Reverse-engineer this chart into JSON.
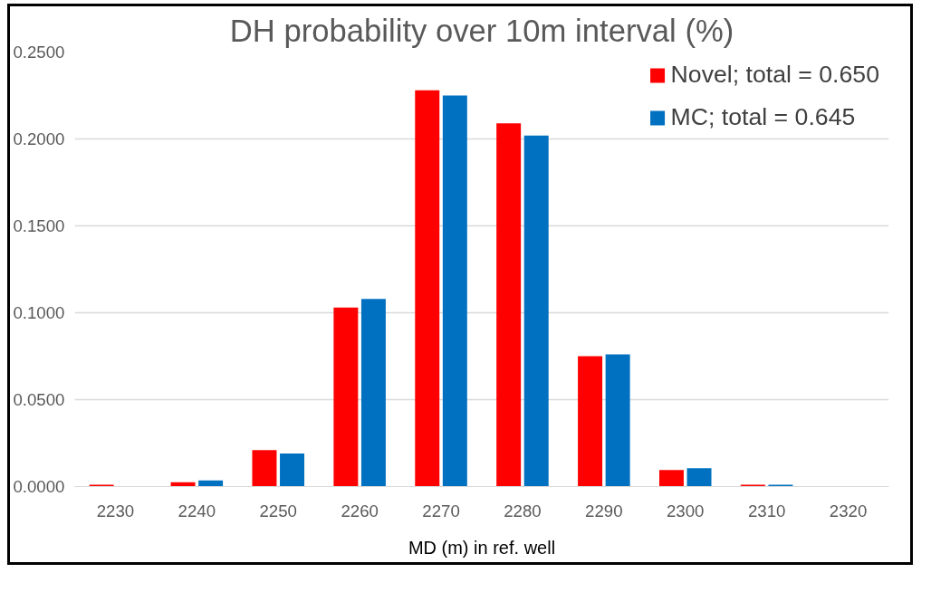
{
  "chart_data": {
    "type": "bar",
    "title": "DH probability over 10m interval (%)",
    "xlabel": "MD (m) in ref. well",
    "categories": [
      "2230",
      "2240",
      "2250",
      "2260",
      "2270",
      "2280",
      "2290",
      "2300",
      "2310",
      "2320"
    ],
    "series": [
      {
        "name": "Novel; total = 0.650",
        "color": "#ff0000",
        "values": [
          0.001,
          0.0025,
          0.021,
          0.103,
          0.228,
          0.209,
          0.075,
          0.0095,
          0.001,
          null
        ]
      },
      {
        "name": "MC; total = 0.645",
        "color": "#0070c0",
        "values": [
          null,
          0.0035,
          0.019,
          0.108,
          0.225,
          0.202,
          0.076,
          0.0105,
          0.001,
          null
        ]
      }
    ],
    "ylim": [
      0,
      0.25
    ],
    "yticks": [
      {
        "value": 0,
        "label": "0.0000"
      },
      {
        "value": 0.05,
        "label": "0.0500"
      },
      {
        "value": 0.1,
        "label": "0.1000"
      },
      {
        "value": 0.15,
        "label": "0.1500"
      },
      {
        "value": 0.2,
        "label": "0.2000"
      },
      {
        "value": 0.25,
        "label": "0.2500"
      }
    ],
    "grid": "y",
    "legend": "top right"
  }
}
